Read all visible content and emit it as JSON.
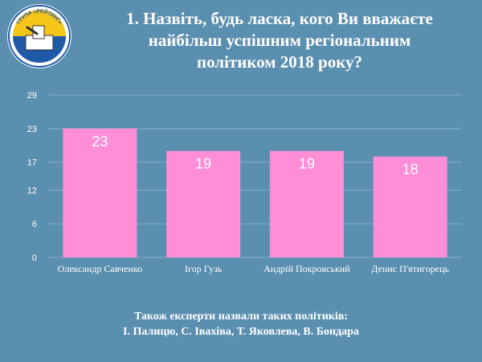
{
  "logo": {
    "top_text": "ГРУПА «РЕЙТИНГ»",
    "bottom_text": "ЗА СОЦІОЛОГІЧНИХ ДОСЛІДЖЕНЬ",
    "colors": {
      "top": "#f5c518",
      "bottom": "#1f5aa6",
      "ring": "#1f5aa6"
    }
  },
  "title": {
    "line1": "1. Назвіть, будь ласка, кого Ви вважаєте",
    "line2": "найбільш успішним регіональним",
    "line3": "політиком 2018 року?"
  },
  "chart_data": {
    "type": "bar",
    "categories": [
      "Олександр Савченко",
      "Ігор Гузь",
      "Андрій Покровський",
      "Денис П'ятигорець"
    ],
    "values": [
      23,
      19,
      19,
      18
    ],
    "yticks": [
      "0",
      "6",
      "12",
      "17",
      "23",
      "29"
    ],
    "ylim": [
      0,
      29
    ],
    "grid": true,
    "bar_color": "#ff8ed6",
    "label_color": "#ffffff"
  },
  "footer": {
    "line1": "Також експерти назвали таких політиків:",
    "line2": "І. Палицю, С. Івахіва, Т. Яковлева, В. Бондара"
  }
}
